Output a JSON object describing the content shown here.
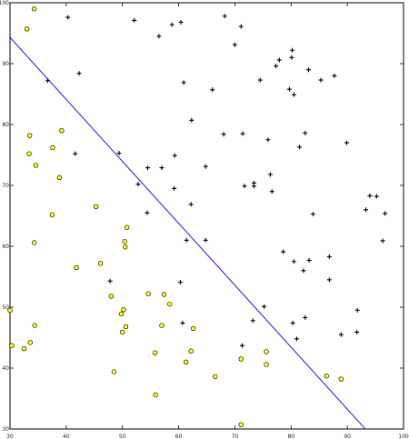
{
  "chart_data": {
    "type": "scatter",
    "title": "",
    "xlabel": "",
    "ylabel": "",
    "xlim": [
      30,
      100
    ],
    "ylim": [
      30,
      100
    ],
    "xticks": [
      30,
      40,
      50,
      60,
      70,
      80,
      90,
      100
    ],
    "yticks": [
      30,
      40,
      50,
      60,
      70,
      80,
      90,
      100
    ],
    "grid": false,
    "series": [
      {
        "marker": "plus",
        "color": "#000000",
        "points": [
          [
            40.3,
            97.6
          ],
          [
            52.1,
            97.1
          ],
          [
            58.8,
            96.4
          ],
          [
            60.4,
            96.8
          ],
          [
            68.2,
            97.8
          ],
          [
            71.1,
            96.1
          ],
          [
            56.5,
            94.5
          ],
          [
            70.0,
            93.1
          ],
          [
            80.2,
            92.2
          ],
          [
            77.9,
            90.6
          ],
          [
            77.3,
            89.6
          ],
          [
            42.3,
            88.4
          ],
          [
            36.7,
            87.2
          ],
          [
            60.9,
            86.9
          ],
          [
            74.5,
            87.3
          ],
          [
            80.1,
            91.0
          ],
          [
            83.1,
            89.0
          ],
          [
            87.7,
            88.0
          ],
          [
            85.3,
            87.3
          ],
          [
            66.0,
            85.7
          ],
          [
            79.7,
            85.8
          ],
          [
            80.5,
            84.9
          ],
          [
            62.3,
            80.7
          ],
          [
            82.5,
            78.6
          ],
          [
            68.0,
            78.4
          ],
          [
            71.4,
            78.5
          ],
          [
            75.9,
            77.5
          ],
          [
            81.5,
            76.3
          ],
          [
            89.9,
            77.0
          ],
          [
            59.3,
            74.9
          ],
          [
            49.4,
            75.3
          ],
          [
            41.6,
            75.2
          ],
          [
            64.8,
            73.1
          ],
          [
            57.0,
            72.9
          ],
          [
            54.5,
            72.9
          ],
          [
            76.3,
            71.8
          ],
          [
            73.4,
            70.4
          ],
          [
            73.4,
            69.9
          ],
          [
            52.8,
            70.2
          ],
          [
            71.7,
            69.9
          ],
          [
            59.2,
            69.5
          ],
          [
            62.2,
            66.9
          ],
          [
            64.8,
            61.0
          ],
          [
            61.4,
            61.0
          ],
          [
            78.6,
            59.1
          ],
          [
            80.5,
            57.5
          ],
          [
            82.2,
            56.0
          ],
          [
            86.8,
            58.3
          ],
          [
            86.8,
            54.5
          ],
          [
            75.2,
            50.1
          ],
          [
            82.5,
            48.3
          ],
          [
            91.8,
            49.5
          ],
          [
            91.7,
            45.9
          ],
          [
            88.9,
            45.5
          ],
          [
            73.2,
            47.8
          ],
          [
            80.3,
            47.4
          ],
          [
            81.0,
            44.8
          ],
          [
            71.3,
            43.7
          ],
          [
            76.6,
            69.0
          ],
          [
            93.3,
            66.0
          ],
          [
            83.9,
            65.3
          ],
          [
            96.7,
            65.4
          ],
          [
            94.0,
            68.3
          ],
          [
            95.2,
            68.2
          ],
          [
            96.3,
            60.9
          ],
          [
            83.2,
            57.7
          ],
          [
            54.4,
            65.5
          ],
          [
            60.3,
            54.1
          ],
          [
            47.8,
            54.3
          ],
          [
            60.7,
            47.4
          ]
        ]
      },
      {
        "marker": "circle",
        "color": "#ffff00",
        "points": [
          [
            34.3,
            99.0
          ],
          [
            33.0,
            95.7
          ],
          [
            33.5,
            78.2
          ],
          [
            33.4,
            75.2
          ],
          [
            34.6,
            73.3
          ],
          [
            37.6,
            76.2
          ],
          [
            39.2,
            79.0
          ],
          [
            38.8,
            71.3
          ],
          [
            37.5,
            65.2
          ],
          [
            34.3,
            60.6
          ],
          [
            45.3,
            66.5
          ],
          [
            46.1,
            57.2
          ],
          [
            50.5,
            59.9
          ],
          [
            50.8,
            63.1
          ],
          [
            50.4,
            60.8
          ],
          [
            41.8,
            56.5
          ],
          [
            48.0,
            51.8
          ],
          [
            50.2,
            49.6
          ],
          [
            49.8,
            48.9
          ],
          [
            50.6,
            46.8
          ],
          [
            50.0,
            45.9
          ],
          [
            54.6,
            52.2
          ],
          [
            57.4,
            52.1
          ],
          [
            58.4,
            50.5
          ],
          [
            30.0,
            49.5
          ],
          [
            30.3,
            43.7
          ],
          [
            32.5,
            43.2
          ],
          [
            33.6,
            44.2
          ],
          [
            34.4,
            47.0
          ],
          [
            57.0,
            47.0
          ],
          [
            48.5,
            39.4
          ],
          [
            55.8,
            42.5
          ],
          [
            62.2,
            42.8
          ],
          [
            61.3,
            41.0
          ],
          [
            55.9,
            35.6
          ],
          [
            66.5,
            38.6
          ],
          [
            62.6,
            46.5
          ],
          [
            71.1,
            41.5
          ],
          [
            75.6,
            42.7
          ],
          [
            75.6,
            40.6
          ],
          [
            86.3,
            38.7
          ],
          [
            88.9,
            38.2
          ],
          [
            71.1,
            30.7
          ]
        ]
      }
    ],
    "line": {
      "color": "#0000ff",
      "x": [
        30,
        93.2
      ],
      "y": [
        94.3,
        30
      ]
    }
  }
}
